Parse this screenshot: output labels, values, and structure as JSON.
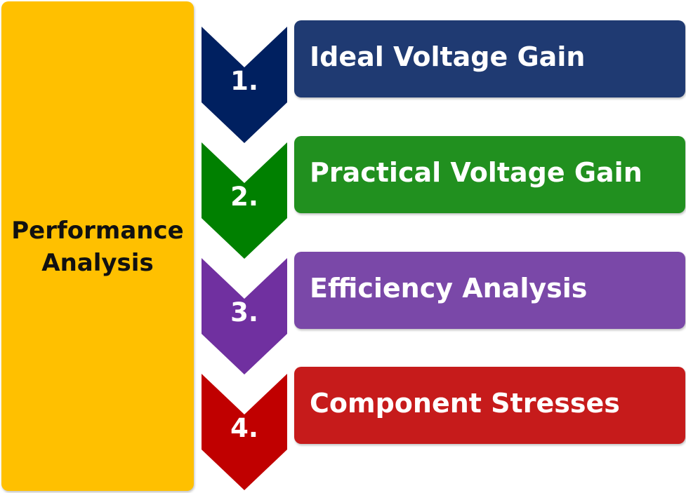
{
  "diagram": {
    "title_lines": [
      "Performance",
      "Analysis"
    ],
    "title_color": "#FFC000",
    "steps": [
      {
        "number": "1.",
        "label": "Ideal Voltage Gain",
        "color": "#1F3A72",
        "chevron_color": "#002060"
      },
      {
        "number": "2.",
        "label": "Practical Voltage Gain",
        "color": "#21901F",
        "chevron_color": "#008000"
      },
      {
        "number": "3.",
        "label": "Efficiency Analysis",
        "color": "#7A48A8",
        "chevron_color": "#7030A0"
      },
      {
        "number": "4.",
        "label": "Component Stresses",
        "color": "#C61B1B",
        "chevron_color": "#C00000"
      }
    ]
  }
}
